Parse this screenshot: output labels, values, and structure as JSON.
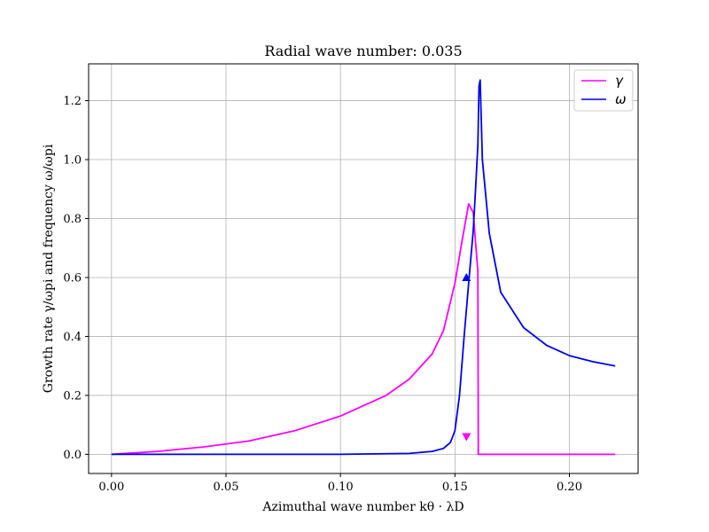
{
  "chart_data": {
    "type": "line",
    "title": "Radial wave number: 0.035",
    "xlabel": "Azimuthal wave number kθ · λD",
    "ylabel": "Growth rate γ/ωpi and frequency ω/ωpi",
    "xlim": [
      -0.01,
      0.23
    ],
    "ylim": [
      -0.065,
      1.325
    ],
    "xticks": [
      "0.00",
      "0.05",
      "0.10",
      "0.15",
      "0.20"
    ],
    "xtick_values": [
      0.0,
      0.05,
      0.1,
      0.15,
      0.2
    ],
    "yticks": [
      "0.0",
      "0.2",
      "0.4",
      "0.6",
      "0.8",
      "1.0",
      "1.2"
    ],
    "ytick_values": [
      0.0,
      0.2,
      0.4,
      0.6,
      0.8,
      1.0,
      1.2
    ],
    "grid": true,
    "legend_position": "top-right",
    "series": [
      {
        "name": "γ",
        "color": "#ff00ff",
        "x": [
          0.0,
          0.02,
          0.04,
          0.06,
          0.08,
          0.1,
          0.12,
          0.13,
          0.14,
          0.145,
          0.15,
          0.153,
          0.156,
          0.158,
          0.16,
          0.1602,
          0.1605,
          0.18,
          0.2,
          0.22
        ],
        "y": [
          0.0,
          0.01,
          0.025,
          0.045,
          0.08,
          0.13,
          0.2,
          0.255,
          0.34,
          0.42,
          0.58,
          0.72,
          0.85,
          0.82,
          0.62,
          0.0,
          0.0,
          0.0,
          0.0,
          0.0
        ]
      },
      {
        "name": "ω",
        "color": "#0000ee",
        "x": [
          0.0,
          0.05,
          0.1,
          0.13,
          0.14,
          0.145,
          0.148,
          0.15,
          0.152,
          0.154,
          0.156,
          0.158,
          0.159,
          0.16,
          0.1605,
          0.161,
          0.162,
          0.165,
          0.17,
          0.18,
          0.19,
          0.2,
          0.21,
          0.22
        ],
        "y": [
          0.0,
          0.0,
          0.0,
          0.003,
          0.01,
          0.02,
          0.04,
          0.08,
          0.2,
          0.4,
          0.58,
          0.76,
          0.9,
          1.05,
          1.25,
          1.27,
          1.0,
          0.75,
          0.55,
          0.43,
          0.37,
          0.335,
          0.315,
          0.3
        ]
      }
    ],
    "markers": [
      {
        "series": "ω",
        "shape": "triangle-up",
        "x": 0.155,
        "y": 0.6,
        "color": "#0000ee"
      },
      {
        "series": "γ",
        "shape": "triangle-down",
        "x": 0.155,
        "y": 0.06,
        "color": "#ff00ff"
      }
    ]
  }
}
